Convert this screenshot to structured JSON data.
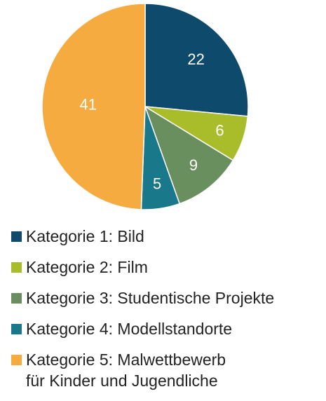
{
  "chart_data": {
    "type": "pie",
    "categories": [
      "Kategorie 1: Bild",
      "Kategorie 2: Film",
      "Kategorie 3: Studentische Projekte",
      "Kategorie 4: Modellstandorte",
      "Kategorie 5: Malwettbewerb\nfür Kinder und Jugendliche"
    ],
    "values": [
      22,
      6,
      9,
      5,
      41
    ],
    "colors": [
      "#0e4a6c",
      "#a8bd29",
      "#6a8f5f",
      "#19798a",
      "#f5ab3f"
    ],
    "legend": "bottom"
  }
}
